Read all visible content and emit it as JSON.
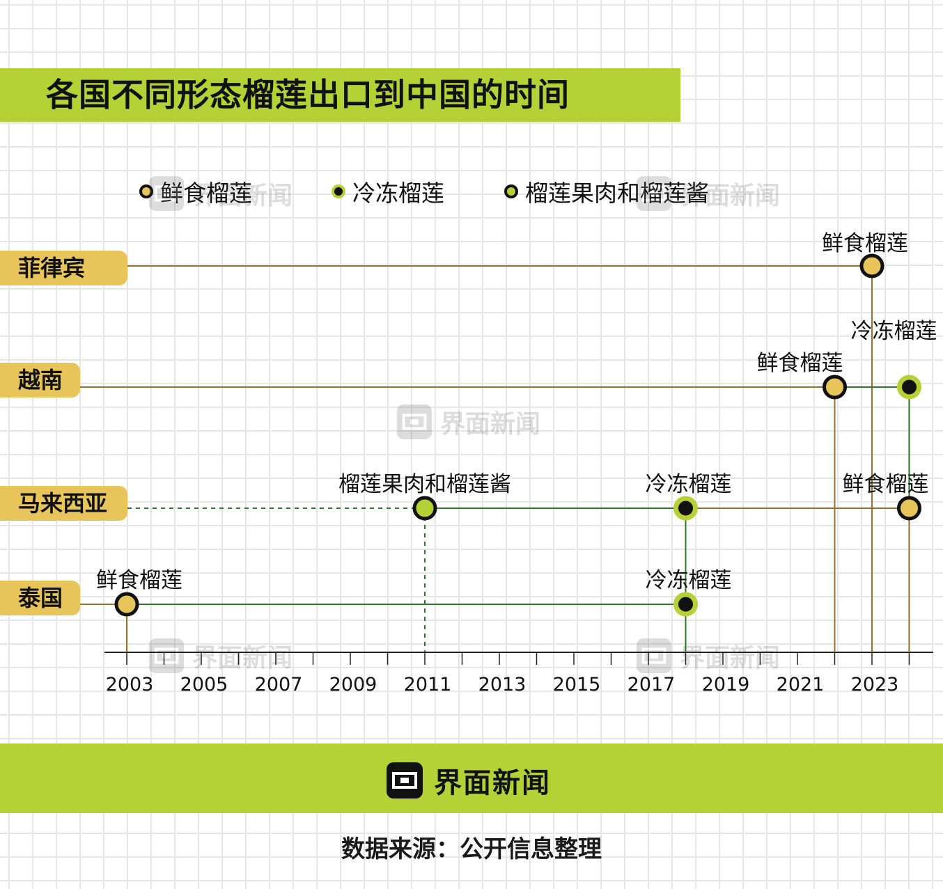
{
  "title": "各国不同形态榴莲出口到中国的时间",
  "legend": [
    {
      "label": "鲜食榴莲",
      "fill": "#e8c55a",
      "ring": "#111111"
    },
    {
      "label": "冷冻榴莲",
      "fill": "#111111",
      "ring": "#b6d136"
    },
    {
      "label": "榴莲果肉和榴莲酱",
      "fill": "#b6d136",
      "ring": "#111111"
    }
  ],
  "countries": [
    {
      "name": "菲律宾"
    },
    {
      "name": "越南"
    },
    {
      "name": "马来西亚"
    },
    {
      "name": "泰国"
    }
  ],
  "watermark_text": "界面新闻",
  "brand": {
    "name": "界面新闻"
  },
  "source": "数据来源：公开信息整理",
  "chart_data": {
    "type": "timeline",
    "title": "各国不同形态榴莲出口到中国的时间",
    "xlabel": "",
    "ylabel": "",
    "x_ticks": [
      2003,
      2005,
      2007,
      2009,
      2011,
      2013,
      2015,
      2017,
      2019,
      2021,
      2023
    ],
    "x_range": [
      2002.4,
      2024.6
    ],
    "categories": [
      "菲律宾",
      "越南",
      "马来西亚",
      "泰国"
    ],
    "events": [
      {
        "country": "菲律宾",
        "year": 2023,
        "type": "鲜食榴莲",
        "label": "鲜食榴莲"
      },
      {
        "country": "越南",
        "year": 2022,
        "type": "鲜食榴莲",
        "label": "鲜食榴莲"
      },
      {
        "country": "越南",
        "year": 2024,
        "type": "冷冻榴莲",
        "label": "冷冻榴莲"
      },
      {
        "country": "马来西亚",
        "year": 2011,
        "type": "榴莲果肉和榴莲酱",
        "label": "榴莲果肉和榴莲酱"
      },
      {
        "country": "马来西亚",
        "year": 2018,
        "type": "冷冻榴莲",
        "label": "冷冻榴莲"
      },
      {
        "country": "马来西亚",
        "year": 2024,
        "type": "鲜食榴莲",
        "label": "鲜食榴莲"
      },
      {
        "country": "泰国",
        "year": 2003,
        "type": "鲜食榴莲",
        "label": "鲜食榴莲"
      },
      {
        "country": "泰国",
        "year": 2018,
        "type": "冷冻榴莲",
        "label": "冷冻榴莲"
      }
    ],
    "colors": {
      "fresh_line": "#9a7128",
      "frozen_line": "#2a7a2a",
      "pulp_line": "#2a7a2a",
      "axis": "#222222"
    },
    "legend_position": "top"
  }
}
